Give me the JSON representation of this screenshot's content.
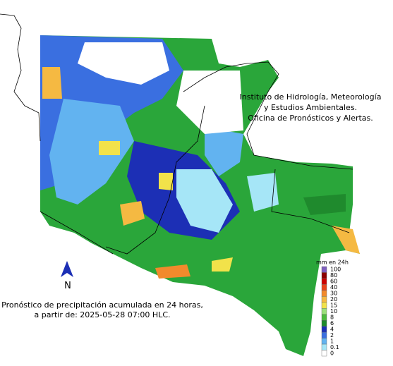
{
  "header": {
    "lines": [
      "Instituto de Hidrología, Meteorología",
      "y Estudios Ambientales.",
      "Oficina de Pronósticos y Alertas."
    ]
  },
  "caption": {
    "lines": [
      "Pronóstico de precipitación acumulada en 24 horas,",
      "a partir de: 2025-05-28 07:00 HLC."
    ]
  },
  "north": "N",
  "legend": {
    "title": "mm en 24h",
    "items": [
      {
        "label": "100",
        "color": "#7e5fbf"
      },
      {
        "label": "80",
        "color": "#8b0000"
      },
      {
        "label": "60",
        "color": "#cc0000"
      },
      {
        "label": "40",
        "color": "#e8441c"
      },
      {
        "label": "30",
        "color": "#f28a2c"
      },
      {
        "label": "20",
        "color": "#f5b942"
      },
      {
        "label": "15",
        "color": "#f2e24a"
      },
      {
        "label": "10",
        "color": "#9be07a"
      },
      {
        "label": "8",
        "color": "#4cbb3d"
      },
      {
        "label": "6",
        "color": "#1f8a2d"
      },
      {
        "label": "4",
        "color": "#1c2fb5"
      },
      {
        "label": "2",
        "color": "#3a6fe0"
      },
      {
        "label": "1",
        "color": "#62b3f0"
      },
      {
        "label": "0.1",
        "color": "#a6e6f7"
      },
      {
        "label": "0",
        "color": "#ffffff"
      }
    ]
  }
}
